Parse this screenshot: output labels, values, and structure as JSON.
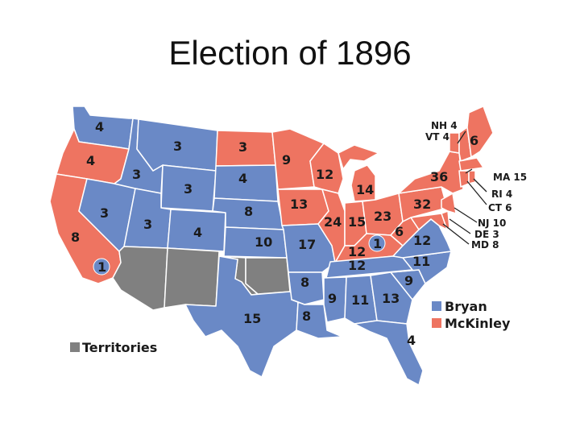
{
  "title": "Election of 1896",
  "colors": {
    "bryan": "#6a89c6",
    "mckinley": "#ee7461",
    "territories": "#808080",
    "border": "#ffffff"
  },
  "legend": {
    "bryan": "Bryan",
    "mckinley": "McKinley",
    "territories": "Territories"
  },
  "states": [
    {
      "id": "WA",
      "party": "bryan",
      "ev": "4"
    },
    {
      "id": "OR",
      "party": "mckinley",
      "ev": "4"
    },
    {
      "id": "CA",
      "party": "mckinley",
      "ev": "8"
    },
    {
      "id": "CA-split",
      "party": "bryan",
      "ev": "1"
    },
    {
      "id": "ID",
      "party": "bryan",
      "ev": "3"
    },
    {
      "id": "NV",
      "party": "bryan",
      "ev": "3"
    },
    {
      "id": "MT",
      "party": "bryan",
      "ev": "3"
    },
    {
      "id": "WY",
      "party": "bryan",
      "ev": "3"
    },
    {
      "id": "UT",
      "party": "bryan",
      "ev": "3"
    },
    {
      "id": "CO",
      "party": "bryan",
      "ev": "4"
    },
    {
      "id": "ND",
      "party": "mckinley",
      "ev": "3"
    },
    {
      "id": "SD",
      "party": "bryan",
      "ev": "4"
    },
    {
      "id": "NE",
      "party": "bryan",
      "ev": "8"
    },
    {
      "id": "KS",
      "party": "bryan",
      "ev": "10"
    },
    {
      "id": "TX",
      "party": "bryan",
      "ev": "15"
    },
    {
      "id": "MN",
      "party": "mckinley",
      "ev": "9"
    },
    {
      "id": "IA",
      "party": "mckinley",
      "ev": "13"
    },
    {
      "id": "MO",
      "party": "bryan",
      "ev": "17"
    },
    {
      "id": "AR",
      "party": "bryan",
      "ev": "8"
    },
    {
      "id": "LA",
      "party": "bryan",
      "ev": "8"
    },
    {
      "id": "WI",
      "party": "mckinley",
      "ev": "12"
    },
    {
      "id": "IL",
      "party": "mckinley",
      "ev": "24"
    },
    {
      "id": "MI",
      "party": "mckinley",
      "ev": "14"
    },
    {
      "id": "IN",
      "party": "mckinley",
      "ev": "15"
    },
    {
      "id": "OH",
      "party": "mckinley",
      "ev": "23"
    },
    {
      "id": "KY",
      "party": "mckinley",
      "ev": "12"
    },
    {
      "id": "KY-split",
      "party": "bryan",
      "ev": "1"
    },
    {
      "id": "TN",
      "party": "bryan",
      "ev": "12"
    },
    {
      "id": "MS",
      "party": "bryan",
      "ev": "9"
    },
    {
      "id": "AL",
      "party": "bryan",
      "ev": "11"
    },
    {
      "id": "GA",
      "party": "bryan",
      "ev": "13"
    },
    {
      "id": "FL",
      "party": "bryan",
      "ev": "4"
    },
    {
      "id": "SC",
      "party": "bryan",
      "ev": "9"
    },
    {
      "id": "NC",
      "party": "bryan",
      "ev": "11"
    },
    {
      "id": "VA",
      "party": "bryan",
      "ev": "12"
    },
    {
      "id": "WV",
      "party": "mckinley",
      "ev": "6"
    },
    {
      "id": "PA",
      "party": "mckinley",
      "ev": "32"
    },
    {
      "id": "NY",
      "party": "mckinley",
      "ev": "36"
    },
    {
      "id": "ME",
      "party": "mckinley",
      "ev": "6"
    },
    {
      "id": "NH",
      "party": "mckinley",
      "ev": "NH 4"
    },
    {
      "id": "VT",
      "party": "mckinley",
      "ev": "VT 4"
    },
    {
      "id": "MA",
      "party": "mckinley",
      "ev": "MA 15"
    },
    {
      "id": "RI",
      "party": "mckinley",
      "ev": "RI 4"
    },
    {
      "id": "CT",
      "party": "mckinley",
      "ev": "CT 6"
    },
    {
      "id": "NJ",
      "party": "mckinley",
      "ev": "NJ 10"
    },
    {
      "id": "DE",
      "party": "mckinley",
      "ev": "DE 3"
    },
    {
      "id": "MD",
      "party": "mckinley",
      "ev": "MD 8"
    },
    {
      "id": "AZ",
      "party": "territories",
      "ev": ""
    },
    {
      "id": "NM",
      "party": "territories",
      "ev": ""
    },
    {
      "id": "OK",
      "party": "territories",
      "ev": ""
    },
    {
      "id": "IT",
      "party": "territories",
      "ev": ""
    }
  ]
}
